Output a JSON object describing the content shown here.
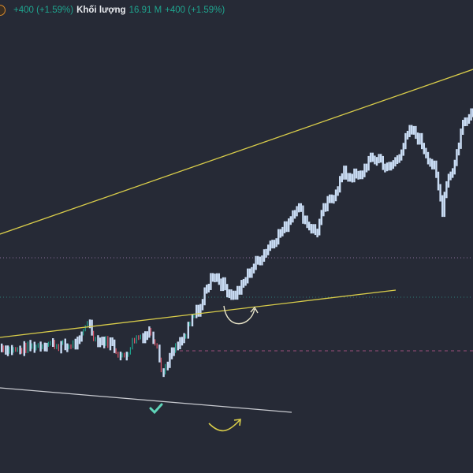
{
  "legend": {
    "change": "+400 (+1.59%)",
    "volume_label": "Khối lượng",
    "volume_value": "16.91 M",
    "volume_change": "+400 (+1.59%)"
  },
  "colors": {
    "background": "#262a36",
    "bar": "#c9dcf4",
    "up": "#1fa58f",
    "down": "#e0566a",
    "trendline_yellow": "#d8cc4a",
    "trendline_white": "#c8cad0",
    "check": "#5fd3b8"
  },
  "chart_data": {
    "type": "bar",
    "title": "",
    "price_path": [
      [
        0,
        26.7
      ],
      [
        20,
        25.8
      ],
      [
        40,
        26.7
      ],
      [
        60,
        27.5
      ],
      [
        80,
        26.7
      ],
      [
        100,
        27.5
      ],
      [
        110,
        32.5
      ],
      [
        120,
        28.3
      ],
      [
        140,
        27.5
      ],
      [
        155,
        24.2
      ],
      [
        170,
        28.3
      ],
      [
        190,
        30
      ],
      [
        200,
        26.7
      ],
      [
        205,
        20
      ],
      [
        210,
        23.3
      ],
      [
        220,
        25.8
      ],
      [
        235,
        29.2
      ],
      [
        245,
        33.3
      ],
      [
        255,
        35.8
      ],
      [
        265,
        40.8
      ],
      [
        270,
        42.5
      ],
      [
        280,
        40
      ],
      [
        295,
        37.5
      ],
      [
        305,
        39.2
      ],
      [
        315,
        42.5
      ],
      [
        330,
        45.8
      ],
      [
        345,
        49.2
      ],
      [
        360,
        51.7
      ],
      [
        375,
        56.7
      ],
      [
        390,
        52.5
      ],
      [
        400,
        50.8
      ],
      [
        410,
        55.8
      ],
      [
        420,
        58.3
      ],
      [
        435,
        63.3
      ],
      [
        455,
        62.5
      ],
      [
        465,
        65.8
      ],
      [
        480,
        66.7
      ],
      [
        490,
        64.2
      ],
      [
        500,
        65.8
      ],
      [
        510,
        69.2
      ],
      [
        520,
        72.5
      ],
      [
        530,
        70.8
      ],
      [
        540,
        67.5
      ],
      [
        550,
        64.2
      ],
      [
        560,
        55.8
      ],
      [
        565,
        61.7
      ],
      [
        575,
        65
      ],
      [
        585,
        73.3
      ],
      [
        595,
        76.7
      ],
      [
        600,
        75.8
      ]
    ],
    "grid": false,
    "legend_placement": "top-left"
  }
}
